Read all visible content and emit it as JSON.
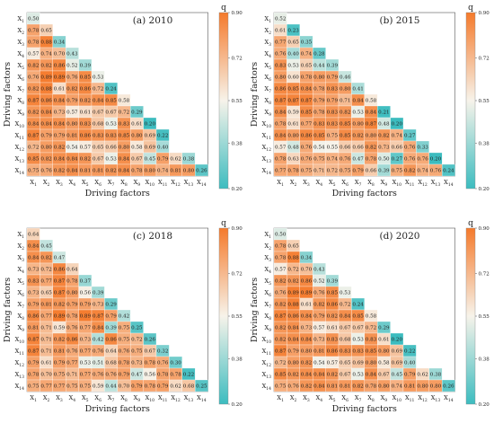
{
  "colors": {
    "low": "#3cbcbf",
    "mid": "#f7f3ea",
    "high": "#f57a2b"
  },
  "chart_data": [
    {
      "type": "heatmap",
      "title": "(a) 2010",
      "xlabel": "Driving factors",
      "ylabel": "Driving factors",
      "legend_title": "q",
      "colorbar_ticks": [
        "0.90",
        "0.72",
        "0.55",
        "0.38",
        "0.20"
      ],
      "range": [
        0.2,
        0.9
      ],
      "x_labels": [
        "X1",
        "X2",
        "X3",
        "X4",
        "X5",
        "X6",
        "X7",
        "X8",
        "X9",
        "X10",
        "X11",
        "X12",
        "X13",
        "X14"
      ],
      "y_labels": [
        "X1",
        "X2",
        "X3",
        "X4",
        "X5",
        "X6",
        "X7",
        "X8",
        "X9",
        "X10",
        "X11",
        "X12",
        "X13",
        "X14"
      ],
      "values": [
        [
          0.5
        ],
        [
          0.78,
          0.65
        ],
        [
          0.78,
          0.88,
          0.34
        ],
        [
          0.57,
          0.74,
          0.7,
          0.43
        ],
        [
          0.82,
          0.82,
          0.86,
          0.52,
          0.39
        ],
        [
          0.76,
          0.89,
          0.89,
          0.76,
          0.85,
          0.53
        ],
        [
          0.82,
          0.88,
          0.61,
          0.82,
          0.86,
          0.72,
          0.24
        ],
        [
          0.87,
          0.86,
          0.84,
          0.79,
          0.82,
          0.84,
          0.85,
          0.58
        ],
        [
          0.82,
          0.84,
          0.73,
          0.57,
          0.61,
          0.67,
          0.67,
          0.72,
          0.29
        ],
        [
          0.84,
          0.84,
          0.84,
          0.8,
          0.83,
          0.68,
          0.53,
          0.83,
          0.61,
          0.2
        ],
        [
          0.87,
          0.79,
          0.79,
          0.81,
          0.86,
          0.83,
          0.83,
          0.85,
          0.8,
          0.69,
          0.22
        ],
        [
          0.72,
          0.8,
          0.82,
          0.54,
          0.57,
          0.65,
          0.66,
          0.8,
          0.58,
          0.69,
          0.4
        ],
        [
          0.85,
          0.82,
          0.84,
          0.84,
          0.82,
          0.67,
          0.53,
          0.84,
          0.67,
          0.45,
          0.79,
          0.62,
          0.38
        ],
        [
          0.75,
          0.76,
          0.82,
          0.84,
          0.81,
          0.81,
          0.82,
          0.84,
          0.78,
          0.8,
          0.74,
          0.81,
          0.8,
          0.26
        ]
      ]
    },
    {
      "type": "heatmap",
      "title": "(b) 2015",
      "xlabel": "Driving factors",
      "ylabel": "Driving factors",
      "legend_title": "q",
      "colorbar_ticks": [
        "0.90",
        "0.72",
        "0.55",
        "0.38",
        "0.20"
      ],
      "range": [
        0.2,
        0.9
      ],
      "x_labels": [
        "X1",
        "X2",
        "X3",
        "X4",
        "X5",
        "X6",
        "X7",
        "X8",
        "X9",
        "X10",
        "X11",
        "X12",
        "X13",
        "X14"
      ],
      "y_labels": [
        "X1",
        "X2",
        "X3",
        "X4",
        "X5",
        "X6",
        "X7",
        "X8",
        "X9",
        "X10",
        "X11",
        "X12",
        "X13",
        "X14"
      ],
      "values": [
        [
          0.52
        ],
        [
          0.61,
          0.23
        ],
        [
          0.77,
          0.65,
          0.35
        ],
        [
          0.76,
          0.4,
          0.74,
          0.28
        ],
        [
          0.83,
          0.53,
          0.65,
          0.44,
          0.39
        ],
        [
          0.8,
          0.6,
          0.78,
          0.8,
          0.79,
          0.46
        ],
        [
          0.86,
          0.85,
          0.84,
          0.78,
          0.83,
          0.8,
          0.41
        ],
        [
          0.87,
          0.87,
          0.87,
          0.79,
          0.79,
          0.71,
          0.84,
          0.58
        ],
        [
          0.84,
          0.59,
          0.85,
          0.78,
          0.83,
          0.82,
          0.53,
          0.84,
          0.21
        ],
        [
          0.78,
          0.61,
          0.77,
          0.83,
          0.83,
          0.85,
          0.8,
          0.87,
          0.48,
          0.2
        ],
        [
          0.84,
          0.8,
          0.86,
          0.85,
          0.75,
          0.85,
          0.82,
          0.8,
          0.82,
          0.74,
          0.27
        ],
        [
          0.57,
          0.48,
          0.76,
          0.54,
          0.55,
          0.66,
          0.66,
          0.82,
          0.73,
          0.66,
          0.76,
          0.33
        ],
        [
          0.78,
          0.63,
          0.76,
          0.75,
          0.74,
          0.76,
          0.47,
          0.78,
          0.5,
          0.27,
          0.76,
          0.76,
          0.2
        ],
        [
          0.77,
          0.78,
          0.75,
          0.71,
          0.72,
          0.75,
          0.79,
          0.66,
          0.39,
          0.75,
          0.82,
          0.74,
          0.76,
          0.24
        ]
      ]
    },
    {
      "type": "heatmap",
      "title": "(c) 2018",
      "xlabel": "Driving factors",
      "ylabel": "Driving factors",
      "legend_title": "q",
      "colorbar_ticks": [
        "0.90",
        "0.72",
        "0.55",
        "0.38",
        "0.20"
      ],
      "range": [
        0.2,
        0.9
      ],
      "x_labels": [
        "X1",
        "X2",
        "X3",
        "X4",
        "X5",
        "X6",
        "X7",
        "X8",
        "X9",
        "X10",
        "X11",
        "X12",
        "X13",
        "X14"
      ],
      "y_labels": [
        "X1",
        "X2",
        "X3",
        "X4",
        "X5",
        "X6",
        "X7",
        "X8",
        "X9",
        "X10",
        "X11",
        "X12",
        "X13",
        "X14"
      ],
      "values": [
        [
          0.64
        ],
        [
          0.84,
          0.45
        ],
        [
          0.84,
          0.82,
          0.47
        ],
        [
          0.73,
          0.72,
          0.86,
          0.64
        ],
        [
          0.83,
          0.77,
          0.87,
          0.78,
          0.37
        ],
        [
          0.73,
          0.65,
          0.87,
          0.8,
          0.56,
          0.39
        ],
        [
          0.79,
          0.81,
          0.82,
          0.79,
          0.79,
          0.73,
          0.29
        ],
        [
          0.86,
          0.77,
          0.89,
          0.78,
          0.89,
          0.87,
          0.79,
          0.42
        ],
        [
          0.81,
          0.71,
          0.59,
          0.76,
          0.77,
          0.84,
          0.39,
          0.75,
          0.25
        ],
        [
          0.87,
          0.71,
          0.82,
          0.86,
          0.73,
          0.42,
          0.86,
          0.75,
          0.72,
          0.26
        ],
        [
          0.87,
          0.71,
          0.81,
          0.76,
          0.77,
          0.76,
          0.64,
          0.76,
          0.75,
          0.67,
          0.32
        ],
        [
          0.79,
          0.61,
          0.79,
          0.77,
          0.53,
          0.51,
          0.68,
          0.78,
          0.73,
          0.78,
          0.76,
          0.3
        ],
        [
          0.78,
          0.7,
          0.75,
          0.71,
          0.77,
          0.76,
          0.76,
          0.79,
          0.47,
          0.56,
          0.78,
          0.78,
          0.22
        ],
        [
          0.75,
          0.77,
          0.77,
          0.75,
          0.75,
          0.59,
          0.44,
          0.7,
          0.79,
          0.78,
          0.79,
          0.62,
          0.68,
          0.25
        ]
      ]
    },
    {
      "type": "heatmap",
      "title": "(d) 2020",
      "xlabel": "Driving factors",
      "ylabel": "Driving factors",
      "legend_title": "q",
      "colorbar_ticks": [
        "0.90",
        "0.72",
        "0.55",
        "0.38",
        "0.20"
      ],
      "range": [
        0.2,
        0.9
      ],
      "x_labels": [
        "X1",
        "X2",
        "X3",
        "X4",
        "X5",
        "X6",
        "X7",
        "X8",
        "X9",
        "X10",
        "X11",
        "X12",
        "X13",
        "X14"
      ],
      "y_labels": [
        "X1",
        "X2",
        "X3",
        "X4",
        "X5",
        "X6",
        "X7",
        "X8",
        "X9",
        "X10",
        "X11",
        "X12",
        "X13",
        "X14"
      ],
      "values": [
        [
          0.5
        ],
        [
          0.78,
          0.65
        ],
        [
          0.78,
          0.88,
          0.34
        ],
        [
          0.57,
          0.72,
          0.7,
          0.43
        ],
        [
          0.82,
          0.82,
          0.86,
          0.52,
          0.39
        ],
        [
          0.76,
          0.89,
          0.89,
          0.76,
          0.85,
          0.53
        ],
        [
          0.82,
          0.88,
          0.61,
          0.82,
          0.86,
          0.72,
          0.24
        ],
        [
          0.87,
          0.86,
          0.84,
          0.79,
          0.82,
          0.84,
          0.85,
          0.58
        ],
        [
          0.82,
          0.84,
          0.73,
          0.57,
          0.61,
          0.67,
          0.67,
          0.72,
          0.29
        ],
        [
          0.82,
          0.84,
          0.84,
          0.73,
          0.83,
          0.68,
          0.53,
          0.83,
          0.61,
          0.2
        ],
        [
          0.87,
          0.79,
          0.8,
          0.81,
          0.86,
          0.83,
          0.83,
          0.85,
          0.8,
          0.69,
          0.22
        ],
        [
          0.72,
          0.8,
          0.82,
          0.54,
          0.57,
          0.65,
          0.69,
          0.8,
          0.58,
          0.69,
          0.4
        ],
        [
          0.85,
          0.82,
          0.84,
          0.84,
          0.82,
          0.67,
          0.53,
          0.84,
          0.67,
          0.45,
          0.79,
          0.62,
          0.38
        ],
        [
          0.75,
          0.76,
          0.82,
          0.84,
          0.81,
          0.81,
          0.82,
          0.78,
          0.8,
          0.74,
          0.81,
          0.8,
          0.8,
          0.26
        ]
      ]
    }
  ]
}
